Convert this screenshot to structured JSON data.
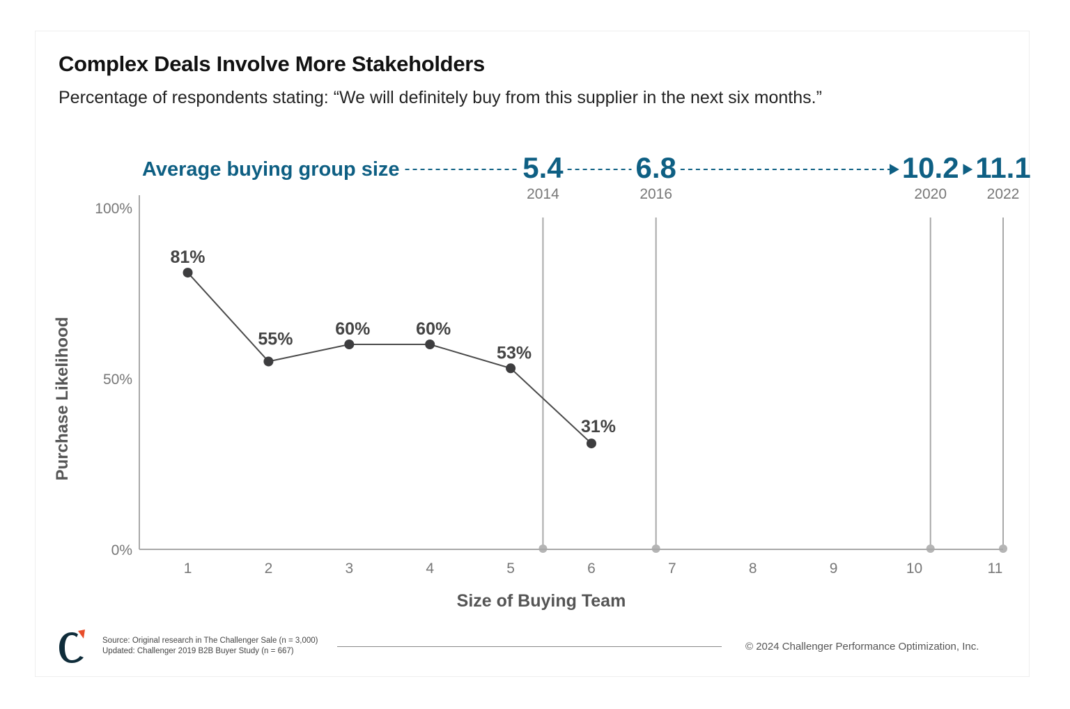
{
  "title": "Complex Deals Involve More Stakeholders",
  "subtitle": "Percentage of respondents stating: “We will definitely buy from this supplier in the next six months.”",
  "footer": {
    "source_line1": "Source: Original research in The Challenger Sale (n = 3,000)",
    "source_line2": "Updated: Challenger 2019 B2B Buyer Study (n = 667)",
    "copyright": "© 2024 Challenger Performance Optimization, Inc."
  },
  "colors": {
    "accent": "#0e5f83",
    "line": "#4a4a4a",
    "point": "#3d3d3f",
    "axis": "#a8a8a8",
    "tick_text": "#777777",
    "logo_dark": "#0f2c3a",
    "logo_accent": "#e84d2a"
  },
  "chart_data": {
    "type": "line",
    "xlabel": "Size of Buying Team",
    "ylabel": "Purchase Likelihood",
    "x_ticks": [
      "1",
      "2",
      "3",
      "4",
      "5",
      "6",
      "7",
      "8",
      "9",
      "10",
      "11"
    ],
    "y_ticks": [
      "0%",
      "50%",
      "100%"
    ],
    "xlim": [
      0.4,
      11.1
    ],
    "ylim": [
      0,
      100
    ],
    "grid": false,
    "series": [
      {
        "x": [
          1,
          2,
          3,
          4,
          5,
          6
        ],
        "y": [
          81,
          55,
          60,
          60,
          53,
          31
        ],
        "labels": [
          "81%",
          "55%",
          "60%",
          "60%",
          "53%",
          "31%"
        ]
      }
    ],
    "reference_lines": {
      "header": "Average buying group size",
      "items": [
        {
          "x": 5.4,
          "value": "5.4",
          "year": "2014"
        },
        {
          "x": 6.8,
          "value": "6.8",
          "year": "2016"
        },
        {
          "x": 10.2,
          "value": "10.2",
          "year": "2020"
        },
        {
          "x": 11.1,
          "value": "11.1",
          "year": "2022"
        }
      ]
    }
  }
}
